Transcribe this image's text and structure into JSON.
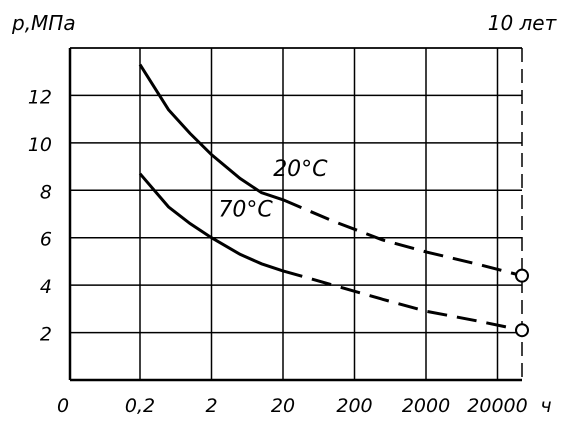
{
  "chart_data": {
    "type": "line",
    "title": "",
    "ylabel": "p,МПа",
    "xlabel": "ч",
    "x_scale": "log",
    "x_categories": [
      "0,2",
      "2",
      "20",
      "200",
      "2000",
      "20000"
    ],
    "x_origin_label": "0",
    "ylim": [
      0,
      14
    ],
    "y_ticks": [
      "2",
      "4",
      "6",
      "8",
      "10",
      "12"
    ],
    "grid": true,
    "marker_line": {
      "x": 87600,
      "label": "10 лет"
    },
    "series": [
      {
        "name": "20°C",
        "color": "#000000",
        "solid": [
          {
            "x": 0.2,
            "y": 13.3
          },
          {
            "x": 0.5,
            "y": 11.4
          },
          {
            "x": 1,
            "y": 10.4
          },
          {
            "x": 2,
            "y": 9.5
          },
          {
            "x": 5,
            "y": 8.5
          },
          {
            "x": 10,
            "y": 7.9
          },
          {
            "x": 20,
            "y": 7.6
          }
        ],
        "dashed": [
          {
            "x": 20,
            "y": 7.6
          },
          {
            "x": 100,
            "y": 6.7
          },
          {
            "x": 500,
            "y": 5.9
          },
          {
            "x": 2000,
            "y": 5.4
          },
          {
            "x": 10000,
            "y": 4.9
          },
          {
            "x": 87600,
            "y": 4.4
          }
        ],
        "endpoint": {
          "x": 87600,
          "y": 4.4
        }
      },
      {
        "name": "70°C",
        "color": "#000000",
        "solid": [
          {
            "x": 0.2,
            "y": 8.7
          },
          {
            "x": 0.5,
            "y": 7.3
          },
          {
            "x": 1,
            "y": 6.6
          },
          {
            "x": 2,
            "y": 6.0
          },
          {
            "x": 5,
            "y": 5.3
          },
          {
            "x": 10,
            "y": 4.9
          },
          {
            "x": 20,
            "y": 4.6
          }
        ],
        "dashed": [
          {
            "x": 20,
            "y": 4.6
          },
          {
            "x": 100,
            "y": 4.0
          },
          {
            "x": 500,
            "y": 3.4
          },
          {
            "x": 2000,
            "y": 2.9
          },
          {
            "x": 10000,
            "y": 2.5
          },
          {
            "x": 87600,
            "y": 2.1
          }
        ],
        "endpoint": {
          "x": 87600,
          "y": 2.1
        }
      }
    ],
    "curve_labels": [
      {
        "text": "20°C",
        "x": 35,
        "y": 8.6
      },
      {
        "text": "70°C",
        "x": 6,
        "y": 6.9
      }
    ]
  }
}
